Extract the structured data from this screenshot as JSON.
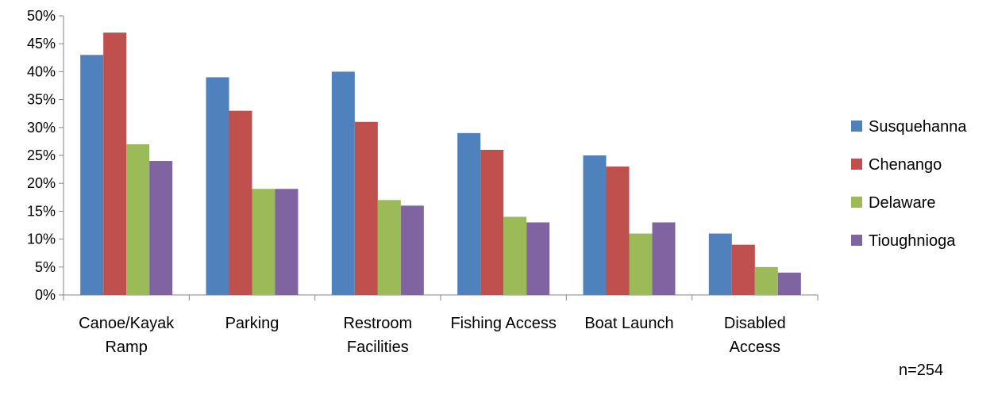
{
  "chart_data": {
    "type": "bar",
    "categories": [
      [
        "Canoe/Kayak",
        "Ramp"
      ],
      [
        "Parking"
      ],
      [
        "Restroom",
        "Facilities"
      ],
      [
        "Fishing Access"
      ],
      [
        "Boat Launch"
      ],
      [
        "Disabled",
        "Access"
      ]
    ],
    "series": [
      {
        "name": "Susquehanna",
        "color": "#4F81BD",
        "values": [
          43,
          39,
          40,
          29,
          25,
          11
        ]
      },
      {
        "name": "Chenango",
        "color": "#C0504D",
        "values": [
          47,
          33,
          31,
          26,
          23,
          9
        ]
      },
      {
        "name": "Delaware",
        "color": "#9BBB59",
        "values": [
          27,
          19,
          17,
          14,
          11,
          5
        ]
      },
      {
        "name": "Tioughnioga",
        "color": "#8064A2",
        "values": [
          24,
          19,
          16,
          13,
          13,
          4
        ]
      }
    ],
    "y_ticks": [
      "0%",
      "5%",
      "10%",
      "15%",
      "20%",
      "25%",
      "30%",
      "35%",
      "40%",
      "45%",
      "50%"
    ],
    "ylim": [
      0,
      50
    ],
    "y_unit": "%",
    "grid": false,
    "legend_position": "right"
  },
  "note": "n=254"
}
